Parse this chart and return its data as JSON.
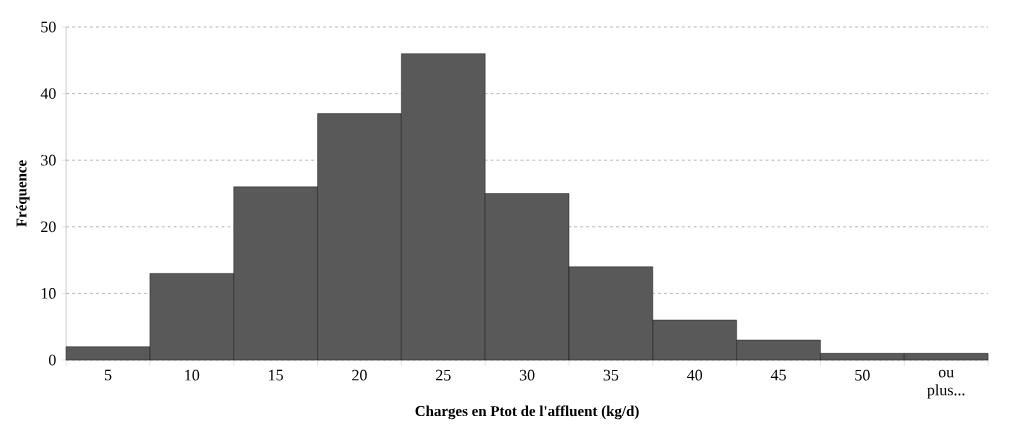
{
  "chart_data": {
    "type": "bar",
    "xlabel": "Charges en Ptot de l'affluent (kg/d)",
    "ylabel": "Fréquence",
    "categories": [
      "5",
      "10",
      "15",
      "20",
      "25",
      "30",
      "35",
      "40",
      "45",
      "50",
      "ou plus..."
    ],
    "values": [
      2,
      13,
      26,
      37,
      46,
      25,
      14,
      6,
      3,
      1,
      1
    ],
    "color": "#595959",
    "ylim": [
      0,
      50
    ],
    "yticks": [
      0,
      10,
      20,
      30,
      40,
      50
    ],
    "grid": "y"
  }
}
